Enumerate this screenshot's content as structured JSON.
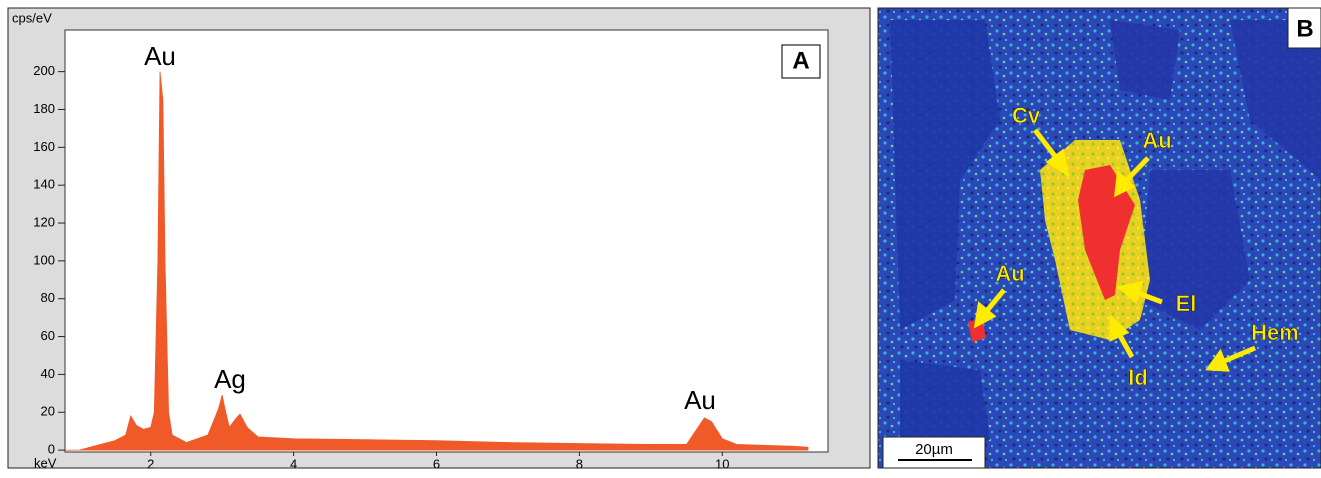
{
  "chart_data": {
    "type": "area",
    "panel_label": "A",
    "ylabel": "cps/eV",
    "xlabel": "keV",
    "x": [
      0.8,
      1.0,
      1.2,
      1.5,
      1.65,
      1.72,
      1.8,
      1.9,
      2.0,
      2.05,
      2.1,
      2.13,
      2.17,
      2.2,
      2.25,
      2.3,
      2.5,
      2.8,
      2.95,
      3.0,
      3.05,
      3.1,
      3.2,
      3.25,
      3.35,
      3.5,
      4.0,
      5.0,
      6.0,
      7.0,
      8.0,
      9.0,
      9.5,
      9.75,
      9.85,
      10.0,
      10.2,
      11.0,
      11.2
    ],
    "values": [
      0,
      0,
      2,
      5,
      8,
      18,
      13,
      11,
      12,
      20,
      100,
      200,
      185,
      100,
      20,
      8,
      4,
      8,
      22,
      29,
      20,
      12,
      17,
      19,
      12,
      7,
      6,
      5.5,
      5,
      4,
      3.5,
      3,
      3,
      17,
      15,
      6,
      3,
      2,
      1.5
    ],
    "color": "#f05a28",
    "annotations": [
      "Au",
      "Ag",
      "Au"
    ],
    "xlim": [
      0.8,
      11.48
    ],
    "ylim": [
      -1,
      222
    ],
    "xticks": [
      2,
      4,
      6,
      8,
      10
    ],
    "yticks": [
      0,
      20,
      40,
      60,
      80,
      100,
      120,
      140,
      160,
      180,
      200
    ]
  },
  "image_panel": {
    "label": "B",
    "scale_bar": "20µm",
    "annotations": [
      "Cv",
      "Au",
      "Au",
      "El",
      "Hem",
      "Id"
    ]
  }
}
